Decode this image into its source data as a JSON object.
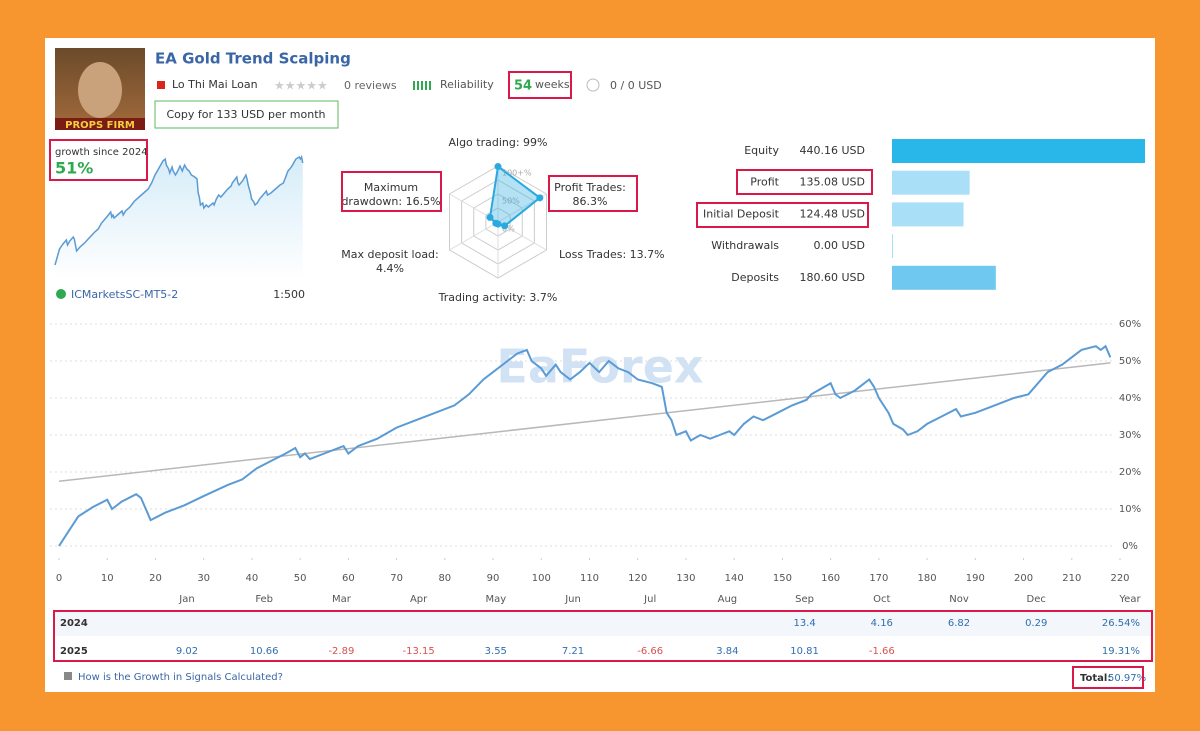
{
  "header": {
    "title": "EA Gold Trend Scalping",
    "avatar_caption": "PROPS FIRM",
    "author": "Lo Thi Mai Loan",
    "reviews": "0 reviews",
    "reliability": "Reliability",
    "weeks_value": "54",
    "weeks_unit": "weeks",
    "subscribers": "0 / 0 USD",
    "copy_button": "Copy for 133 USD per month"
  },
  "growth": {
    "label": "growth since 2024",
    "value": "51%",
    "server": "ICMarketsSC-MT5-2",
    "leverage": "1:500"
  },
  "radar": {
    "type": "radar",
    "labels": [
      [
        "Algo trading: 99%"
      ],
      [
        "Profit Trades:",
        "86.3%"
      ],
      [
        "Loss Trades: 13.7%"
      ],
      [
        "Trading activity: 3.7%"
      ],
      [
        "Max deposit load:",
        "4.4%"
      ],
      [
        "Maximum",
        "drawdown: 16.5%"
      ]
    ],
    "values": [
      99,
      86.3,
      13.7,
      3.7,
      4.4,
      16.5
    ],
    "rings": [
      {
        "value": 100,
        "label": "100+%"
      },
      {
        "value": 50,
        "label": "50%"
      },
      {
        "value": 0,
        "label": "0%"
      }
    ],
    "color": "#29a9e0"
  },
  "balance": {
    "type": "hbar",
    "categories": [
      "Equity",
      "Profit",
      "Initial Deposit",
      "Withdrawals",
      "Deposits"
    ],
    "values": [
      440.16,
      135.08,
      124.48,
      0.0,
      180.6
    ],
    "value_labels": [
      "440.16 USD",
      "135.08 USD",
      "124.48 USD",
      "0.00 USD",
      "180.60 USD"
    ],
    "colors": [
      "#29b6e8",
      "#a9e0f7",
      "#a9e0f7",
      "#a9e0f7",
      "#6fc8ef"
    ]
  },
  "watermark": "EaForex",
  "chart_data": {
    "type": "line",
    "x": [
      0,
      2,
      4,
      7,
      10,
      11,
      13,
      16,
      17,
      19,
      22,
      26,
      30,
      35,
      38,
      41,
      44,
      47,
      49,
      50,
      51,
      52,
      55,
      58,
      59,
      60,
      62,
      66,
      70,
      74,
      78,
      82,
      85,
      88,
      90,
      93,
      95,
      97,
      98,
      100,
      101,
      103,
      104,
      106,
      108,
      110,
      112,
      114,
      116,
      118,
      120,
      123,
      125,
      126,
      127,
      128,
      130,
      131,
      133,
      135,
      137,
      139,
      140,
      142,
      144,
      146,
      149,
      152,
      155,
      156,
      158,
      160,
      161,
      162,
      165,
      167,
      168,
      169,
      170,
      172,
      173,
      175,
      176,
      178,
      180,
      183,
      186,
      187,
      190,
      194,
      198,
      201,
      203,
      205,
      208,
      210,
      212,
      215,
      216,
      217,
      218
    ],
    "values": [
      0,
      4,
      8,
      10.5,
      12.5,
      10,
      12,
      14,
      13,
      7,
      9,
      11,
      13.5,
      16.5,
      18,
      21,
      23,
      25,
      26.5,
      24,
      25,
      23.5,
      25,
      26.5,
      27,
      25,
      27,
      29,
      32,
      34,
      36,
      38,
      41,
      45,
      47,
      50,
      52,
      53,
      50,
      48,
      46,
      49,
      47,
      45,
      47,
      49.5,
      47,
      50,
      48,
      47,
      45,
      44,
      43,
      36,
      34,
      30,
      31,
      28.5,
      30,
      29,
      30,
      31,
      30,
      33,
      35,
      34,
      36,
      38,
      39.5,
      41,
      42.5,
      44,
      41,
      40,
      42,
      44,
      45,
      43,
      40,
      36,
      33,
      31.5,
      30,
      31,
      33,
      35,
      37,
      35,
      36,
      38,
      40,
      41,
      44,
      47,
      49,
      51,
      53,
      54,
      53,
      54,
      51
    ],
    "color": "#5b9bd5",
    "trend": {
      "x": [
        0,
        218
      ],
      "values": [
        17.5,
        49.5
      ],
      "color": "#b8b8b8"
    },
    "xlim": [
      0,
      220
    ],
    "xticks": [
      0,
      10,
      20,
      30,
      40,
      50,
      60,
      70,
      80,
      90,
      100,
      110,
      120,
      130,
      140,
      150,
      160,
      170,
      180,
      190,
      200,
      210,
      220
    ],
    "ylim": [
      0,
      60
    ],
    "yticks": [
      {
        "value": 0,
        "label": "0%"
      },
      {
        "value": 10,
        "label": "10%"
      },
      {
        "value": 20,
        "label": "20%"
      },
      {
        "value": 30,
        "label": "30%"
      },
      {
        "value": 40,
        "label": "40%"
      },
      {
        "value": 50,
        "label": "50%"
      },
      {
        "value": 60,
        "label": "60%"
      }
    ],
    "grid": true
  },
  "monthly": {
    "months": [
      "Jan",
      "Feb",
      "Mar",
      "Apr",
      "May",
      "Jun",
      "Jul",
      "Aug",
      "Sep",
      "Oct",
      "Nov",
      "Dec"
    ],
    "year_header": "Year",
    "rows": [
      {
        "year": "2024",
        "values": [
          null,
          null,
          null,
          null,
          null,
          null,
          null,
          null,
          13.4,
          4.16,
          6.82,
          0.29
        ],
        "total": "26.54%"
      },
      {
        "year": "2025",
        "values": [
          9.02,
          10.66,
          -2.89,
          -13.15,
          3.55,
          7.21,
          -6.66,
          3.84,
          10.81,
          -1.66,
          null,
          null
        ],
        "total": "19.31%"
      }
    ]
  },
  "footer": {
    "help": "How is the Growth in Signals Calculated?",
    "total_label": "Total:",
    "total_value": "50.97%"
  }
}
